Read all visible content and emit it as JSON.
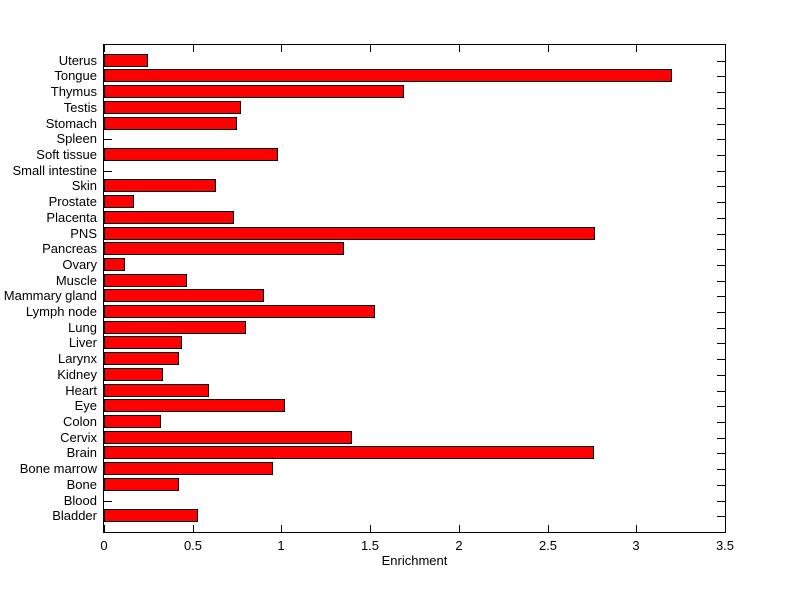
{
  "chart_data": {
    "type": "bar",
    "orientation": "horizontal",
    "title": "",
    "xlabel": "Enrichment",
    "categories": [
      "Uterus",
      "Tongue",
      "Thymus",
      "Testis",
      "Stomach",
      "Spleen",
      "Soft tissue",
      "Small intestine",
      "Skin",
      "Prostate",
      "Placenta",
      "PNS",
      "Pancreas",
      "Ovary",
      "Muscle",
      "Mammary gland",
      "Lymph node",
      "Lung",
      "Liver",
      "Larynx",
      "Kidney",
      "Heart",
      "Eye",
      "Colon",
      "Cervix",
      "Brain",
      "Bone marrow",
      "Bone",
      "Blood",
      "Bladder"
    ],
    "values": [
      0.25,
      3.2,
      1.69,
      0.77,
      0.75,
      0,
      0.98,
      0,
      0.63,
      0.17,
      0.73,
      2.77,
      1.35,
      0.12,
      0.47,
      0.9,
      1.53,
      0.8,
      0.44,
      0.42,
      0.33,
      0.59,
      1.02,
      0.32,
      1.4,
      2.76,
      0.95,
      0.42,
      0,
      0.53
    ],
    "xlim": [
      0,
      3.5
    ],
    "xticks": [
      0,
      0.5,
      1,
      1.5,
      2,
      2.5,
      3,
      3.5
    ],
    "xtick_labels": [
      "0",
      "0.5",
      "1",
      "1.5",
      "2",
      "2.5",
      "3",
      "3.5"
    ],
    "grid": false,
    "legend": "none",
    "bar_color": "#ff0000",
    "bar_edge_color": "#000000",
    "axis_color": "#000000",
    "background_color": "#ffffff"
  }
}
